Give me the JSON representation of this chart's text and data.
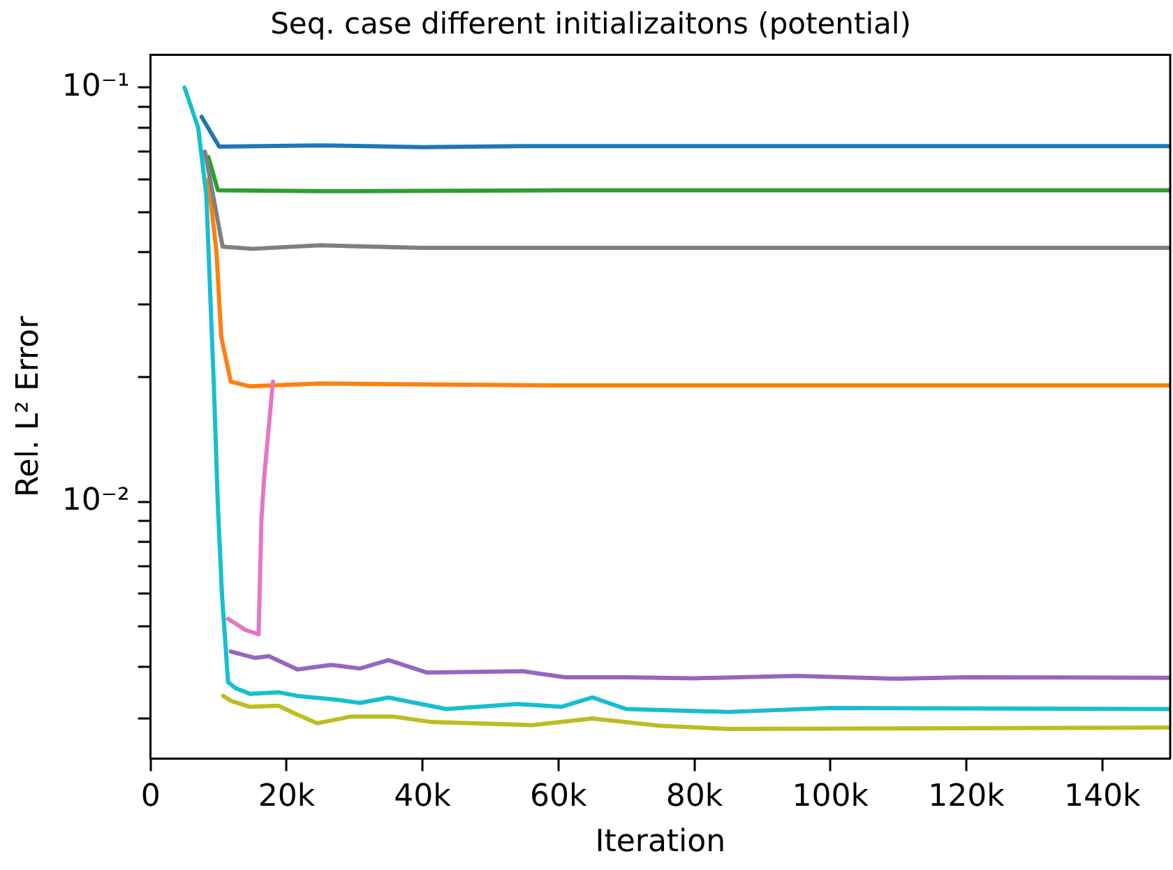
{
  "chart_data": {
    "type": "line",
    "title": "Seq. case different initializaitons (potential)",
    "xlabel": "Iteration",
    "ylabel": "Rel. L² Error",
    "log": "y",
    "xlim": [
      0,
      150000
    ],
    "xticks": [
      0,
      {
        "value": 20000,
        "label": "20k"
      },
      {
        "value": 40000,
        "label": "40k"
      },
      {
        "value": 60000,
        "label": "60k"
      },
      {
        "value": 80000,
        "label": "80k"
      },
      {
        "value": 100000,
        "label": "100k"
      },
      {
        "value": 120000,
        "label": "120k"
      },
      {
        "value": 140000,
        "label": "140k"
      }
    ],
    "ylim": [
      0.0024,
      0.12
    ],
    "yticks": [
      {
        "value": 0.003,
        "label": null
      },
      {
        "value": 0.004,
        "label": null
      },
      {
        "value": 0.005,
        "label": null
      },
      {
        "value": 0.006,
        "label": null
      },
      {
        "value": 0.007,
        "label": null
      },
      {
        "value": 0.008,
        "label": null
      },
      {
        "value": 0.009,
        "label": null
      },
      {
        "value": 0.01,
        "label": "10⁻²"
      },
      {
        "value": 0.02,
        "label": null
      },
      {
        "value": 0.03,
        "label": null
      },
      {
        "value": 0.04,
        "label": null
      },
      {
        "value": 0.05,
        "label": null
      },
      {
        "value": 0.06,
        "label": null
      },
      {
        "value": 0.07,
        "label": null
      },
      {
        "value": 0.08,
        "label": null
      },
      {
        "value": 0.09,
        "label": null
      },
      {
        "value": 0.1,
        "label": "10⁻¹"
      }
    ],
    "series": [
      {
        "color": "#1f77b4",
        "x": [
          7500,
          10100,
          25000,
          40000,
          55000,
          150000
        ],
        "values": [
          0.085,
          0.072,
          0.0725,
          0.0718,
          0.0722,
          0.0722
        ]
      },
      {
        "color": "#ff7f0e",
        "x": [
          8500,
          9700,
          10400,
          11800,
          14600,
          25000,
          60000,
          150000
        ],
        "values": [
          0.06,
          0.04,
          0.025,
          0.0195,
          0.019,
          0.0193,
          0.0191,
          0.0191
        ]
      },
      {
        "color": "#2ca02c",
        "x": [
          8500,
          9900,
          25000,
          60000,
          150000
        ],
        "values": [
          0.068,
          0.0565,
          0.0562,
          0.0565,
          0.0565
        ]
      },
      {
        "color": "#e377c2",
        "x": [
          11400,
          14000,
          15900,
          16300,
          16700,
          18000
        ],
        "values": [
          0.00522,
          0.0049,
          0.00479,
          0.009,
          0.0114,
          0.0195
        ]
      },
      {
        "color": "#7f7f7f",
        "x": [
          8000,
          10600,
          15000,
          25000,
          40000,
          150000
        ],
        "values": [
          0.07,
          0.0413,
          0.0408,
          0.0416,
          0.041,
          0.041
        ]
      },
      {
        "color": "#9467bd",
        "x": [
          11800,
          15300,
          17400,
          21600,
          26600,
          30800,
          35000,
          40700,
          54800,
          61000,
          70000,
          80000,
          95000,
          110000,
          120000,
          150000
        ],
        "values": [
          0.00435,
          0.0042,
          0.00424,
          0.00394,
          0.00404,
          0.00396,
          0.00415,
          0.00387,
          0.0039,
          0.00377,
          0.00377,
          0.00375,
          0.0038,
          0.00374,
          0.00377,
          0.00376
        ]
      },
      {
        "color": "#bcbd22",
        "x": [
          10700,
          11800,
          14600,
          18800,
          20900,
          24500,
          29400,
          35700,
          41400,
          56200,
          65000,
          75000,
          85000,
          150000
        ],
        "values": [
          0.0034,
          0.00331,
          0.0032,
          0.00322,
          0.0031,
          0.00292,
          0.00303,
          0.00303,
          0.00294,
          0.00289,
          0.003,
          0.00288,
          0.00283,
          0.00285
        ]
      },
      {
        "color": "#17becf",
        "x": [
          5000,
          7000,
          8200,
          9300,
          9900,
          10500,
          11400,
          12500,
          14600,
          18800,
          21600,
          27300,
          30800,
          35000,
          43500,
          54000,
          60400,
          65000,
          70000,
          85000,
          100000,
          150000
        ],
        "values": [
          0.1,
          0.08,
          0.055,
          0.0193,
          0.0098,
          0.006,
          0.00367,
          0.00355,
          0.00344,
          0.00347,
          0.0034,
          0.00333,
          0.00327,
          0.00337,
          0.00316,
          0.00325,
          0.0032,
          0.00337,
          0.00316,
          0.00311,
          0.00318,
          0.00316
        ]
      }
    ]
  }
}
